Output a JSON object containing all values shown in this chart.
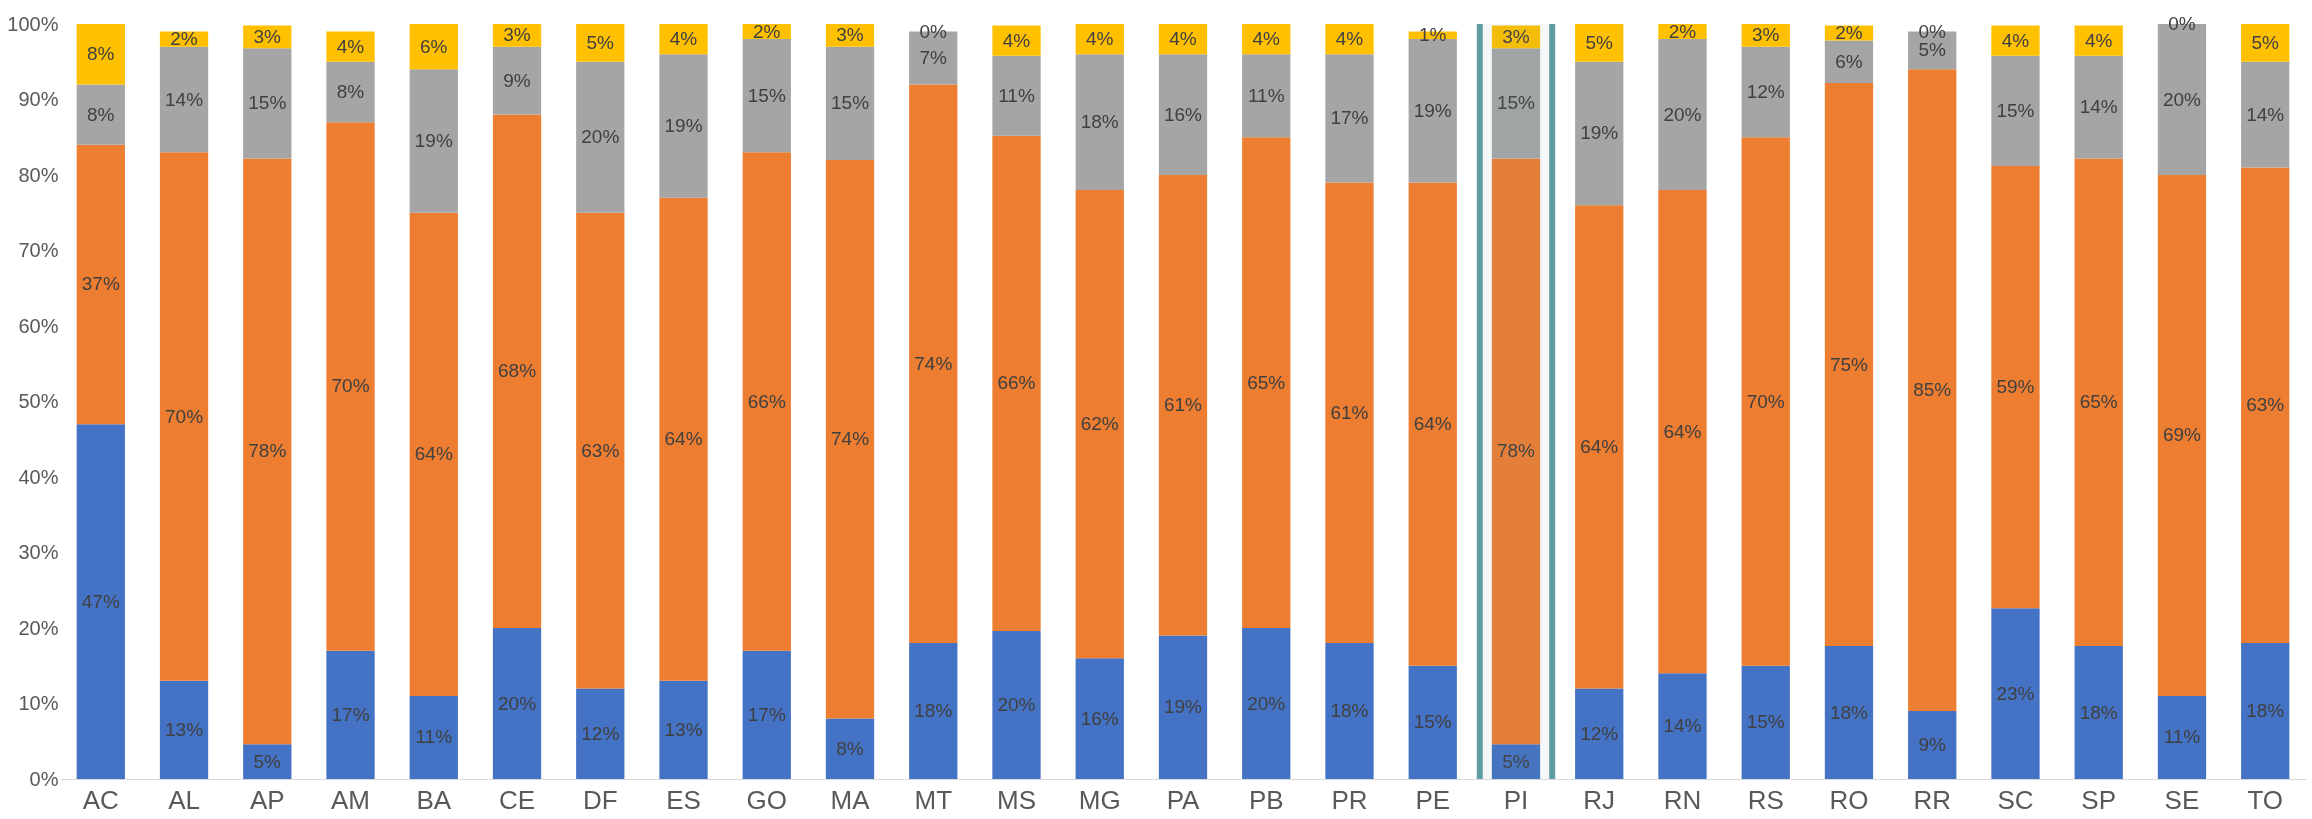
{
  "chart_data": {
    "type": "bar",
    "stacked": true,
    "categories": [
      "AC",
      "AL",
      "AP",
      "AM",
      "BA",
      "CE",
      "DF",
      "ES",
      "GO",
      "MA",
      "MT",
      "MS",
      "MG",
      "PA",
      "PB",
      "PR",
      "PE",
      "PI",
      "RJ",
      "RN",
      "RS",
      "RO",
      "RR",
      "SC",
      "SP",
      "SE",
      "TO"
    ],
    "series": [
      {
        "color": "#4472c4",
        "values": [
          47,
          13,
          4.6,
          17,
          11,
          20,
          12,
          13,
          17,
          8,
          18,
          19.6,
          16,
          19,
          20,
          18,
          15,
          4.6,
          12,
          14,
          15,
          17.6,
          9,
          22.6,
          17.6,
          11,
          18
        ],
        "value_labels": [
          "47%",
          "13%",
          "5%",
          "17%",
          "11%",
          "20%",
          "12%",
          "13%",
          "17%",
          "8%",
          "18%",
          "20%",
          "16%",
          "19%",
          "20%",
          "18%",
          "15%",
          "5%",
          "12%",
          "14%",
          "15%",
          "18%",
          "9%",
          "23%",
          "18%",
          "11%",
          "18%"
        ]
      },
      {
        "color": "#ed7d31",
        "values": [
          37,
          70,
          77.6,
          70,
          64,
          68,
          63,
          64,
          66,
          74,
          74,
          65.6,
          62,
          61,
          65,
          61,
          64,
          77.6,
          64,
          64,
          70,
          74.6,
          85,
          58.6,
          64.6,
          69,
          63
        ],
        "value_labels": [
          "37%",
          "70%",
          "78%",
          "70%",
          "64%",
          "68%",
          "63%",
          "64%",
          "66%",
          "74%",
          "74%",
          "66%",
          "62%",
          "61%",
          "65%",
          "61%",
          "64%",
          "78%",
          "64%",
          "64%",
          "70%",
          "75%",
          "85%",
          "59%",
          "65%",
          "69%",
          "63%"
        ]
      },
      {
        "color": "#a5a5a5",
        "values": [
          8,
          14,
          14.6,
          8,
          19,
          9,
          20,
          19,
          15,
          15,
          7,
          10.6,
          18,
          16,
          11,
          17,
          19,
          14.6,
          19,
          20,
          12,
          5.6,
          5,
          14.6,
          13.6,
          20,
          14
        ],
        "value_labels": [
          "8%",
          "14%",
          "15%",
          "8%",
          "19%",
          "9%",
          "20%",
          "19%",
          "15%",
          "15%",
          "7%",
          "11%",
          "18%",
          "16%",
          "11%",
          "17%",
          "19%",
          "15%",
          "19%",
          "20%",
          "12%",
          "6%",
          "5%",
          "15%",
          "14%",
          "20%",
          "14%"
        ]
      },
      {
        "color": "#ffc000",
        "values": [
          8,
          2,
          3,
          4,
          6,
          3,
          5,
          4,
          2,
          3,
          0,
          4,
          4,
          4,
          4,
          4,
          1,
          3,
          5,
          2,
          3,
          2,
          0,
          4,
          4,
          0,
          5
        ],
        "value_labels": [
          "8%",
          "2%",
          "3%",
          "4%",
          "6%",
          "3%",
          "5%",
          "4%",
          "2%",
          "3%",
          "0%",
          "4%",
          "4%",
          "4%",
          "4%",
          "4%",
          "1%",
          "3%",
          "5%",
          "2%",
          "3%",
          "2%",
          "0%",
          "4%",
          "4%",
          "0%",
          "5%"
        ]
      }
    ],
    "ylim": [
      0,
      100
    ],
    "yticks": [
      {
        "value": 0,
        "label": "0%"
      },
      {
        "value": 10,
        "label": "10%"
      },
      {
        "value": 20,
        "label": "20%"
      },
      {
        "value": 30,
        "label": "30%"
      },
      {
        "value": 40,
        "label": "40%"
      },
      {
        "value": 50,
        "label": "50%"
      },
      {
        "value": 60,
        "label": "60%"
      },
      {
        "value": 70,
        "label": "70%"
      },
      {
        "value": 80,
        "label": "80%"
      },
      {
        "value": 90,
        "label": "90%"
      },
      {
        "value": 100,
        "label": "100%"
      }
    ],
    "bands": [
      {
        "axis": "x",
        "from": "PI",
        "to": "PI",
        "color": "#5f9ea0"
      }
    ],
    "grid": false
  }
}
